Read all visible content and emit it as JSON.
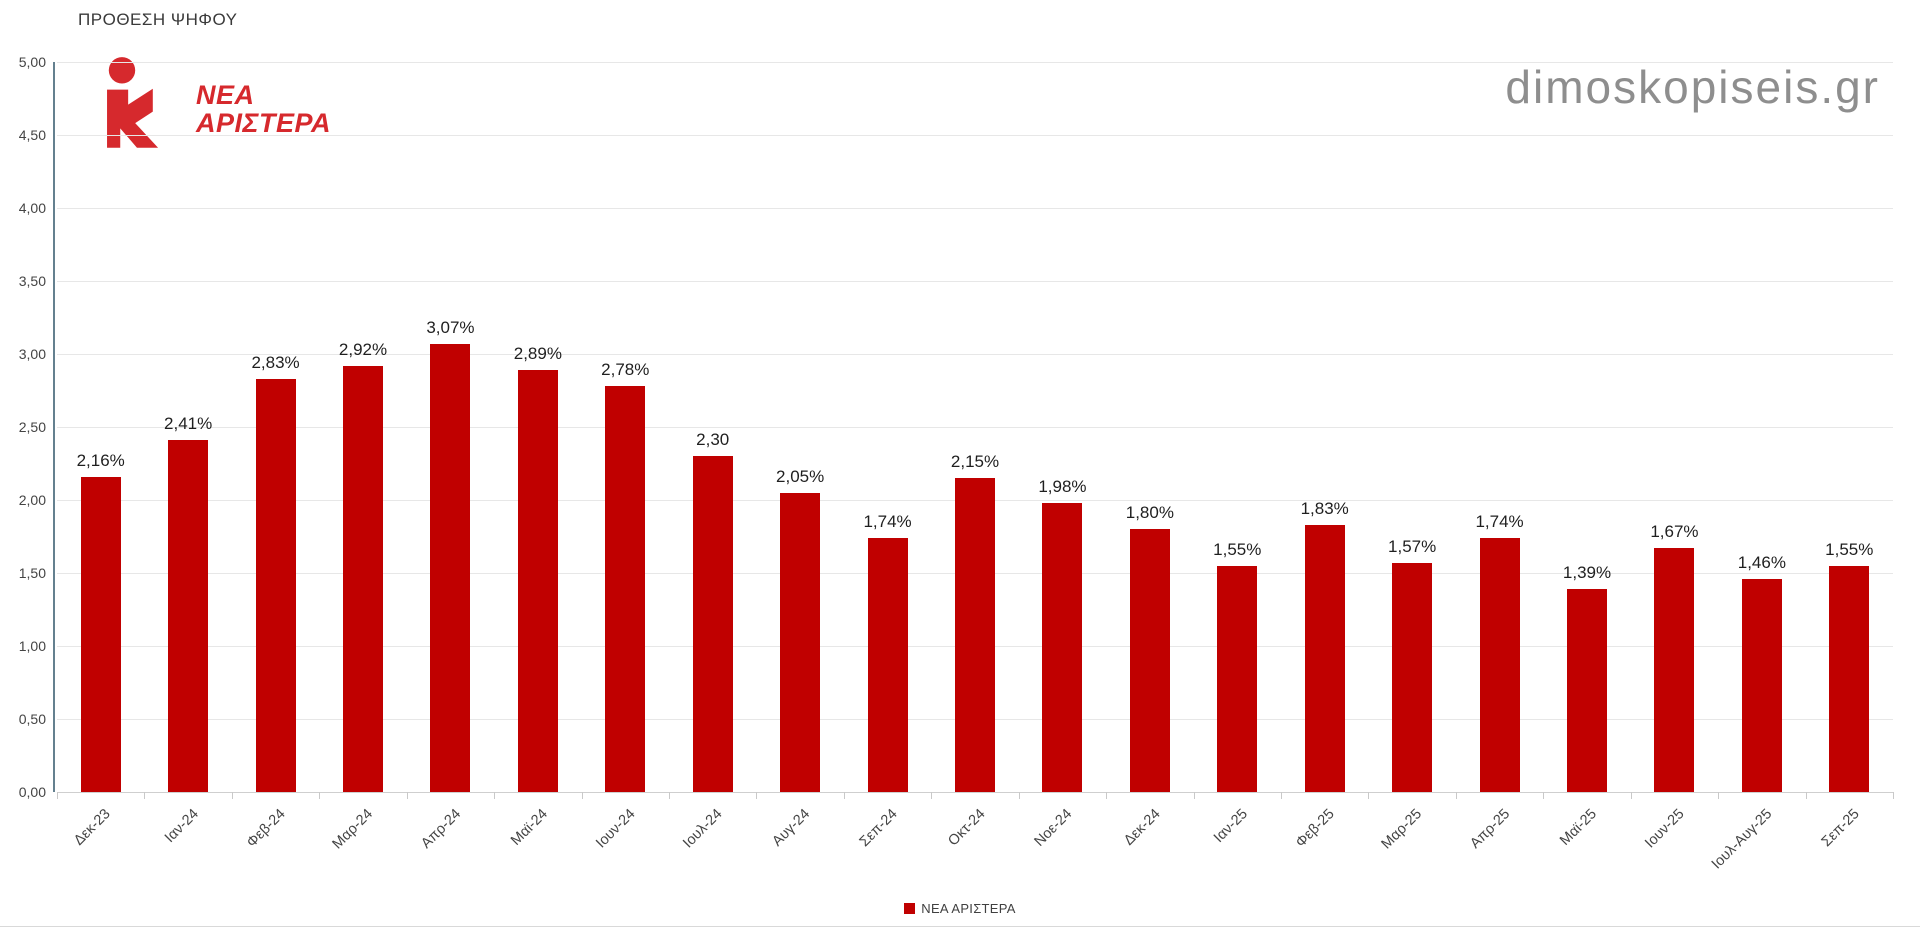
{
  "header": {
    "title": "ΠΡΟΘΕΣΗ ΨΗΦΟΥ"
  },
  "watermark": "dimoskopiseis.gr",
  "logo": {
    "line1": "ΝΕΑ",
    "line2": "ΑΡΙΣΤΕΡΑ"
  },
  "colors": {
    "bar": "#c00000",
    "logo_red": "#d6292d",
    "axis_line": "#64808f",
    "gridline": "#e7e7e7",
    "text_dark": "#1f1f1f",
    "text_axis": "#444444",
    "watermark_gray": "#8e8e8e"
  },
  "chart_data": {
    "type": "bar",
    "title": "ΠΡΟΘΕΣΗ ΨΗΦΟΥ",
    "series_name": "ΝΕΑ ΑΡΙΣΤΕΡΑ",
    "categories": [
      "Δεκ-23",
      "Ιαν-24",
      "Φεβ-24",
      "Μαρ-24",
      "Απρ-24",
      "Μαϊ-24",
      "Ιουν-24",
      "Ιουλ-24",
      "Αυγ-24",
      "Σεπ-24",
      "Οκτ-24",
      "Νοε-24",
      "Δεκ-24",
      "Ιαν-25",
      "Φεβ-25",
      "Μαρ-25",
      "Απρ-25",
      "Μαϊ-25",
      "Ιουν-25",
      "Ιουλ-Αυγ-25",
      "Σεπ-25"
    ],
    "values": [
      2.16,
      2.41,
      2.83,
      2.92,
      3.07,
      2.89,
      2.78,
      2.3,
      2.05,
      1.74,
      2.15,
      1.98,
      1.8,
      1.55,
      1.83,
      1.57,
      1.74,
      1.39,
      1.67,
      1.46,
      1.55
    ],
    "value_labels": [
      "2,16%",
      "2,41%",
      "2,83%",
      "2,92%",
      "3,07%",
      "2,89%",
      "2,78%",
      "2,30",
      "2,05%",
      "1,74%",
      "2,15%",
      "1,98%",
      "1,80%",
      "1,55%",
      "1,83%",
      "1,57%",
      "1,74%",
      "1,39%",
      "1,67%",
      "1,46%",
      "1,55%"
    ],
    "y_ticks": [
      "0,00",
      "0,50",
      "1,00",
      "1,50",
      "2,00",
      "2,50",
      "3,00",
      "3,50",
      "4,00",
      "4,50",
      "5,00"
    ],
    "ylim": [
      0,
      5
    ],
    "xlabel": "",
    "ylabel": "",
    "grid": true,
    "legend_position": "bottom",
    "bar_color": "#c00000"
  }
}
